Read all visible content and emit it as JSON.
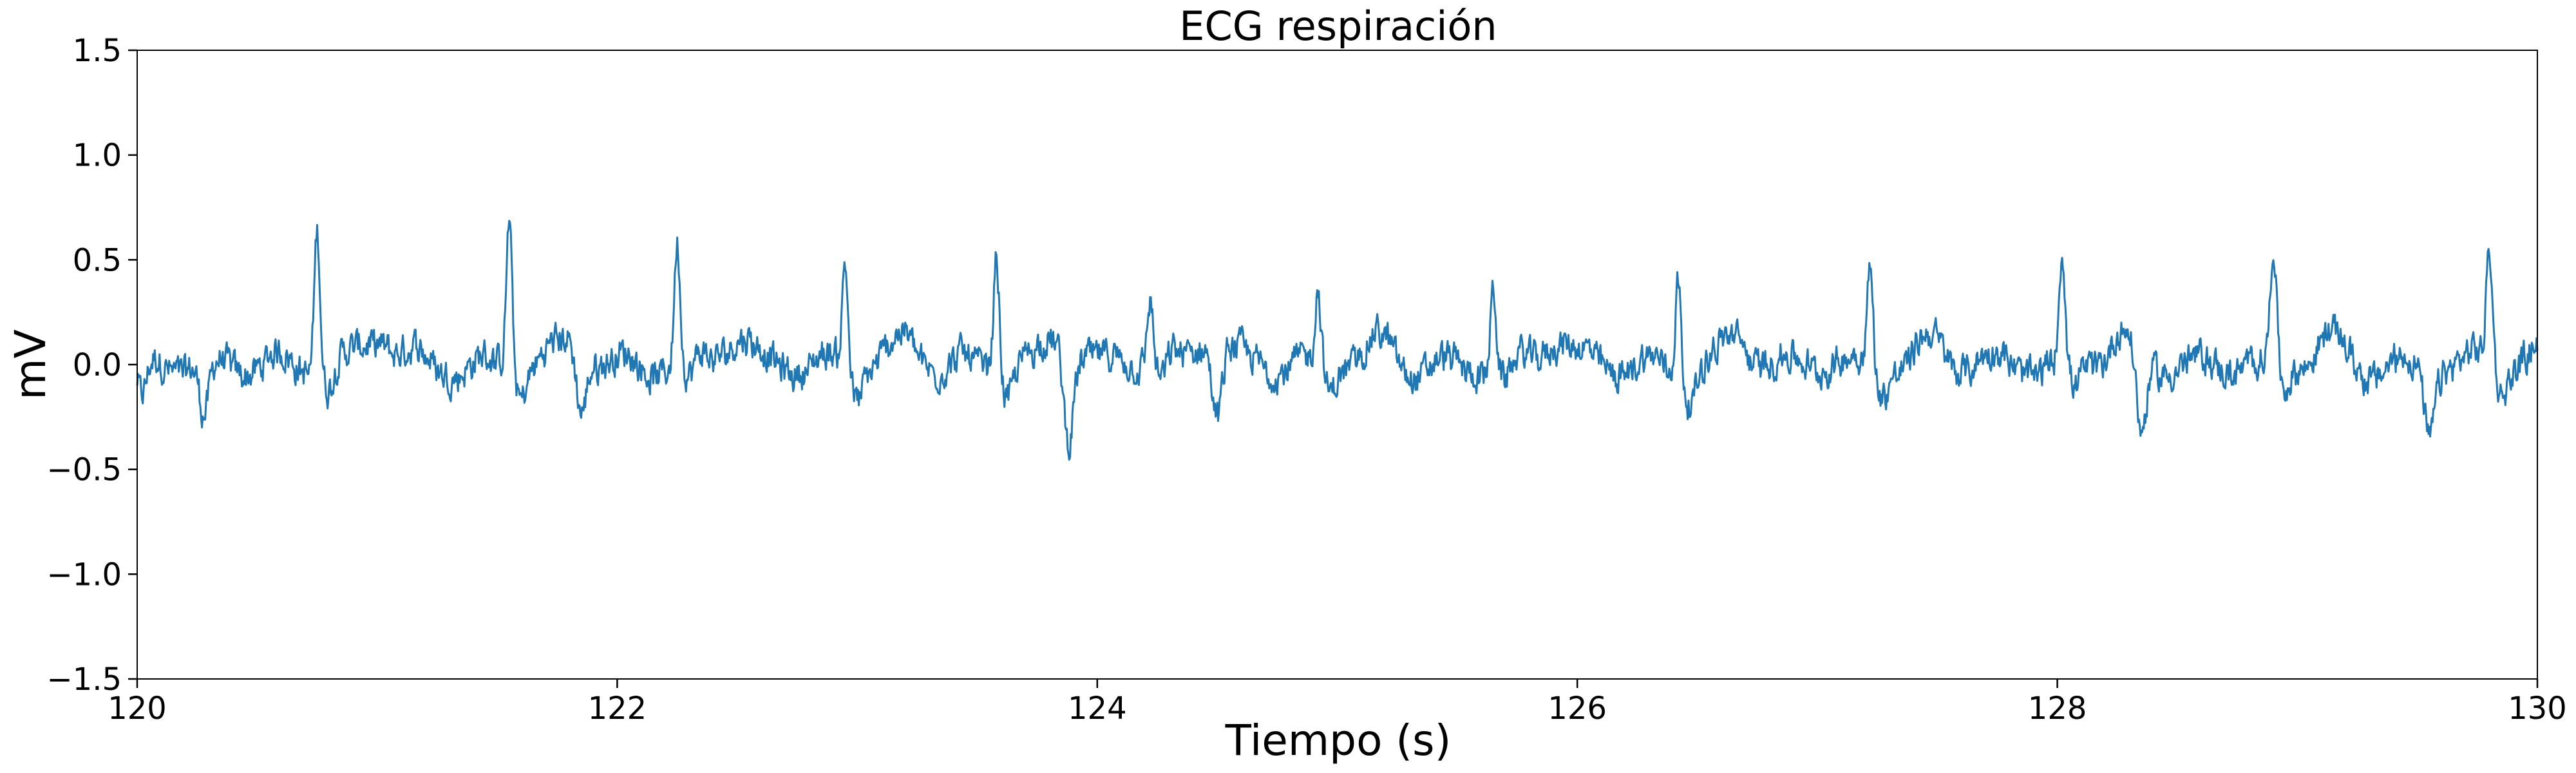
{
  "chart_data": {
    "type": "line",
    "title": "ECG respiración",
    "xlabel": "Tiempo (s)",
    "ylabel": "mV",
    "xlim": [
      120,
      130
    ],
    "ylim": [
      -1.5,
      1.5
    ],
    "xticks": [
      120,
      122,
      124,
      126,
      128,
      130
    ],
    "xtick_labels": [
      "120",
      "122",
      "124",
      "126",
      "128",
      "130"
    ],
    "yticks": [
      -1.5,
      -1.0,
      -0.5,
      0.0,
      0.5,
      1.0,
      1.5
    ],
    "ytick_labels": [
      "−1.5",
      "−1.0",
      "−0.5",
      "0.0",
      "0.5",
      "1.0",
      "1.5"
    ],
    "grid": false,
    "line_color": "#1f77b4",
    "series": [
      {
        "peaks": [
          {
            "x": 120.75,
            "y": 0.75
          },
          {
            "x": 121.55,
            "y": 0.75
          },
          {
            "x": 122.25,
            "y": 0.63
          },
          {
            "x": 122.95,
            "y": 0.54
          },
          {
            "x": 123.58,
            "y": 0.62
          },
          {
            "x": 124.22,
            "y": 0.35
          },
          {
            "x": 124.92,
            "y": 0.39
          },
          {
            "x": 125.65,
            "y": 0.43
          },
          {
            "x": 126.42,
            "y": 0.51
          },
          {
            "x": 127.22,
            "y": 0.51
          },
          {
            "x": 128.02,
            "y": 0.57
          },
          {
            "x": 128.9,
            "y": 0.6
          },
          {
            "x": 129.8,
            "y": 0.61
          }
        ],
        "troughs": [
          {
            "x": 120.02,
            "y": -0.25
          },
          {
            "x": 120.28,
            "y": -0.32
          },
          {
            "x": 121.85,
            "y": -0.33
          },
          {
            "x": 123.88,
            "y": -0.47
          },
          {
            "x": 124.5,
            "y": -0.4
          },
          {
            "x": 128.35,
            "y": -0.46
          },
          {
            "x": 129.55,
            "y": -0.38
          }
        ],
        "baseline": 0.0
      }
    ]
  }
}
